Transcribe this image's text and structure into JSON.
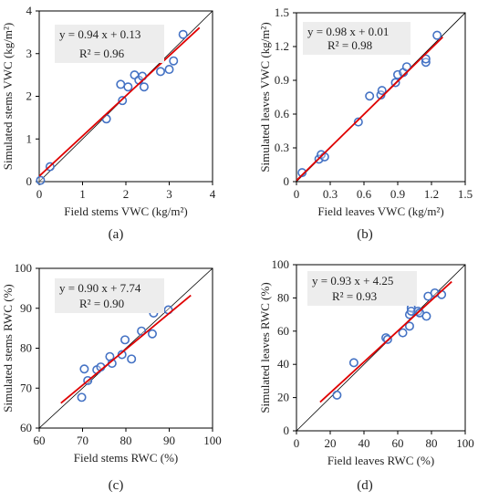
{
  "colors": {
    "marker_edge": "#4472C4",
    "fit_line": "#E00000",
    "identity_line": "#000000",
    "equation_box": "#EDEDED",
    "axis": "#000000"
  },
  "chart_data": [
    {
      "type": "scatter",
      "panel_label": "(a)",
      "xlabel": "Field stems VWC (kg/m²)",
      "ylabel": "Simulated stems VWC (kg/m²)",
      "xlim": [
        0,
        4
      ],
      "ylim": [
        0,
        4
      ],
      "xticks": [
        0,
        1,
        2,
        3,
        4
      ],
      "yticks": [
        0,
        1,
        2,
        3,
        4
      ],
      "xtick_labels": [
        "0",
        "1",
        "2",
        "3",
        "4"
      ],
      "ytick_labels": [
        "0",
        "1",
        "2",
        "3",
        "4"
      ],
      "fit": {
        "slope": 0.94,
        "intercept": 0.13,
        "x_range": [
          0,
          3.7
        ]
      },
      "equation": "y = 0.94 x + 0.13",
      "r2": "R² = 0.96",
      "grid": false,
      "points": [
        [
          0.03,
          0.03
        ],
        [
          0.25,
          0.35
        ],
        [
          1.55,
          1.47
        ],
        [
          1.92,
          1.9
        ],
        [
          1.88,
          2.28
        ],
        [
          2.05,
          2.22
        ],
        [
          2.2,
          2.5
        ],
        [
          2.3,
          2.38
        ],
        [
          2.38,
          2.47
        ],
        [
          2.42,
          2.22
        ],
        [
          2.8,
          2.58
        ],
        [
          3.0,
          2.63
        ],
        [
          3.1,
          2.83
        ],
        [
          3.32,
          3.45
        ]
      ]
    },
    {
      "type": "scatter",
      "panel_label": "(b)",
      "xlabel": "Field leaves VWC (kg/m²)",
      "ylabel": "Simulated leaves VWC (kg/m²)",
      "xlim": [
        0,
        1.5
      ],
      "ylim": [
        0,
        1.5
      ],
      "xticks": [
        0,
        0.3,
        0.6,
        0.9,
        1.2,
        1.5
      ],
      "yticks": [
        0,
        0.3,
        0.6,
        0.9,
        1.2,
        1.5
      ],
      "xtick_labels": [
        "0",
        "0.3",
        "0.6",
        "0.9",
        "1.2",
        "1.5"
      ],
      "ytick_labels": [
        "0",
        "0.3",
        "0.6",
        "0.9",
        "1.2",
        "1.5"
      ],
      "fit": {
        "slope": 0.98,
        "intercept": 0.01,
        "x_range": [
          0,
          1.3
        ]
      },
      "equation": "y = 0.98 x + 0.01",
      "r2": "R² = 0.98",
      "grid": false,
      "points": [
        [
          0.05,
          0.08
        ],
        [
          0.2,
          0.2
        ],
        [
          0.22,
          0.24
        ],
        [
          0.25,
          0.22
        ],
        [
          0.55,
          0.53
        ],
        [
          0.65,
          0.76
        ],
        [
          0.75,
          0.77
        ],
        [
          0.76,
          0.81
        ],
        [
          0.88,
          0.88
        ],
        [
          0.9,
          0.95
        ],
        [
          0.95,
          0.97
        ],
        [
          0.98,
          1.02
        ],
        [
          1.15,
          1.06
        ],
        [
          1.15,
          1.09
        ],
        [
          1.25,
          1.3
        ]
      ]
    },
    {
      "type": "scatter",
      "panel_label": "(c)",
      "xlabel": "Field stems RWC (%)",
      "ylabel": "Simulated stems RWC (%)",
      "xlim": [
        60,
        100
      ],
      "ylim": [
        60,
        100
      ],
      "xticks": [
        60,
        70,
        80,
        90,
        100
      ],
      "yticks": [
        60,
        70,
        80,
        90,
        100
      ],
      "xtick_labels": [
        "60",
        "70",
        "80",
        "90",
        "100"
      ],
      "ytick_labels": [
        "60",
        "70",
        "80",
        "90",
        "100"
      ],
      "fit": {
        "slope": 0.9,
        "intercept": 7.74,
        "x_range": [
          65,
          95
        ]
      },
      "equation": "y = 0.90 x + 7.74",
      "r2": "R² = 0.90",
      "grid": false,
      "points": [
        [
          69.8,
          67.7
        ],
        [
          70.4,
          74.8
        ],
        [
          71.2,
          71.9
        ],
        [
          73.3,
          74.6
        ],
        [
          74.2,
          75.3
        ],
        [
          76.3,
          77.9
        ],
        [
          76.8,
          76.2
        ],
        [
          79.1,
          78.4
        ],
        [
          79.8,
          82.1
        ],
        [
          81.3,
          77.3
        ],
        [
          83.6,
          84.3
        ],
        [
          86.1,
          83.6
        ],
        [
          86.4,
          88.8
        ],
        [
          89.8,
          89.6
        ]
      ]
    },
    {
      "type": "scatter",
      "panel_label": "(d)",
      "xlabel": "Field leaves RWC (%)",
      "ylabel": "Simulated leaves RWC (%)",
      "xlim": [
        0,
        100
      ],
      "ylim": [
        0,
        100
      ],
      "xticks": [
        0,
        20,
        40,
        60,
        80,
        100
      ],
      "yticks": [
        0,
        20,
        40,
        60,
        80,
        100
      ],
      "xtick_labels": [
        "0",
        "20",
        "40",
        "60",
        "80",
        "100"
      ],
      "ytick_labels": [
        "0",
        "20",
        "40",
        "60",
        "80",
        "100"
      ],
      "fit": {
        "slope": 0.93,
        "intercept": 4.25,
        "x_range": [
          14,
          92
        ]
      },
      "equation": "y = 0.93 x + 4.25",
      "r2": "R² = 0.93",
      "grid": false,
      "points": [
        [
          24,
          21.5
        ],
        [
          34,
          41
        ],
        [
          53,
          56
        ],
        [
          54,
          55
        ],
        [
          63,
          59
        ],
        [
          67,
          63
        ],
        [
          67,
          70
        ],
        [
          68,
          74
        ],
        [
          68,
          72
        ],
        [
          72,
          72
        ],
        [
          73,
          71
        ],
        [
          77,
          69
        ],
        [
          78,
          81
        ],
        [
          82,
          83
        ],
        [
          86,
          82
        ]
      ]
    }
  ]
}
